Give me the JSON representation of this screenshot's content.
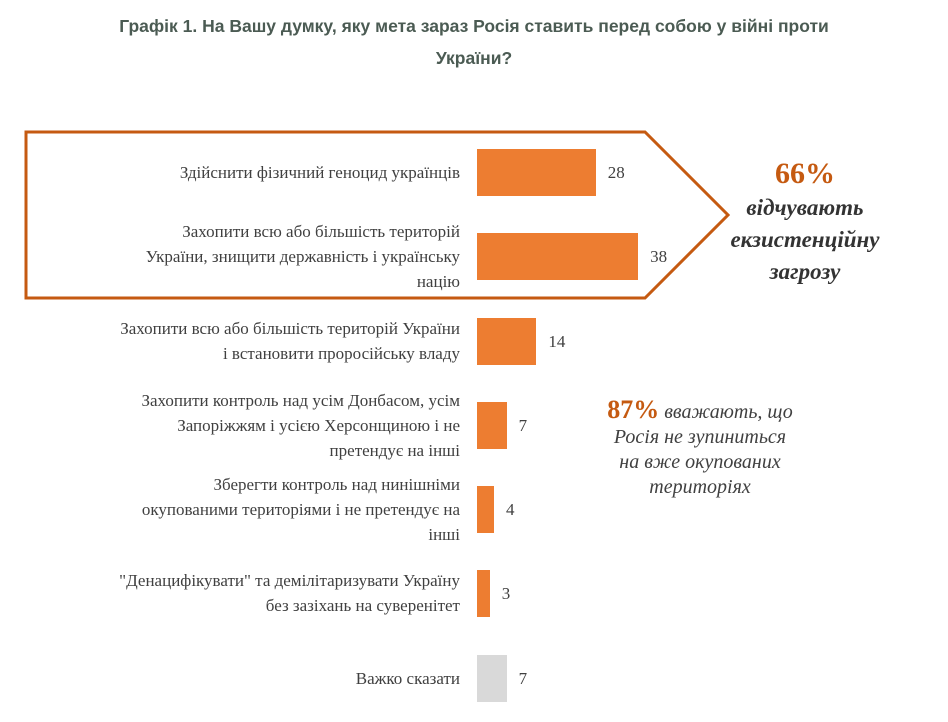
{
  "title": [
    "Графік 1. На Вашу думку, яку мета зараз Росія ставить перед собою у війні проти",
    "України?"
  ],
  "chart_data": {
    "type": "bar",
    "orientation": "horizontal",
    "categories": [
      "Здійснити фізичний геноцид українців",
      "Захопити всю або більшість територій України, знищити державність і українську націю",
      "Захопити всю або більшість територій України і встановити проросійську владу",
      "Захопити контроль над усім Донбасом, усім Запоріжжям і усією Херсонщиною і не претендує на інші",
      "Зберегти контроль над нинішніми окупованими територіями і не претендує на інші",
      "\"Денацифікувати\" та демілітаризувати Україну без зазіхань на суверенітет",
      "Важко сказати"
    ],
    "label_lines": [
      [
        "Здійснити фізичний геноцид українців"
      ],
      [
        "Захопити всю або більшість територій",
        "України, знищити державність і українську",
        "націю"
      ],
      [
        "Захопити всю або більшість територій України",
        "і встановити проросійську владу"
      ],
      [
        "Захопити контроль над усім Донбасом, усім",
        "Запоріжжям і усією Херсонщиною і не",
        "претендує на інші"
      ],
      [
        "Зберегти контроль над нинішніми",
        "окупованими територіями і не претендує на",
        "інші"
      ],
      [
        "\"Денацифікувати\" та демілітаризувати Україну",
        "без зазіхань на суверенітет"
      ],
      [
        "Важко сказати"
      ]
    ],
    "values": [
      28,
      38,
      14,
      7,
      4,
      3,
      7
    ],
    "bar_colors": [
      "#ed7d31",
      "#ed7d31",
      "#ed7d31",
      "#ed7d31",
      "#ed7d31",
      "#ed7d31",
      "#d9d9d9"
    ],
    "unit": "%",
    "grid": false,
    "axes_visible": false,
    "annotations": {
      "highlight_color": "#c55a11",
      "group1": {
        "pct": "66%",
        "lines": [
          "відчувають",
          "екзистенційну",
          "загрозу"
        ]
      },
      "group2": {
        "pct": "87%",
        "first_line": " вважають, що",
        "lines": [
          "Росія не зупиниться",
          "на вже окупованих",
          "територіях"
        ]
      }
    }
  }
}
